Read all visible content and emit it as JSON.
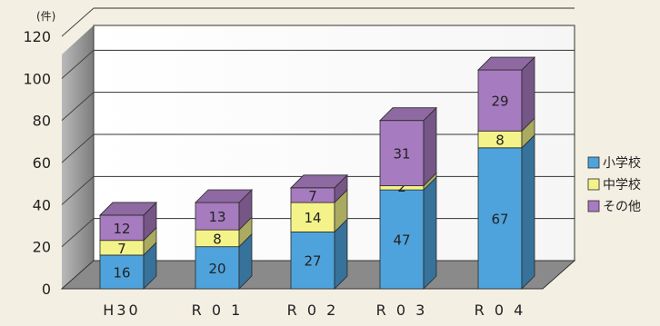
{
  "chart_data": {
    "type": "bar",
    "stacked": true,
    "three_d": true,
    "title": "",
    "xlabel": "",
    "ylabel": "",
    "unit": "(件)",
    "categories": [
      "H30",
      "R 0 1",
      "R 0 2",
      "R 0 3",
      "R 0 4"
    ],
    "series": [
      {
        "name": "小学校",
        "values": [
          16,
          20,
          27,
          47,
          67
        ],
        "color": "#4fa3dc"
      },
      {
        "name": "中学校",
        "values": [
          7,
          8,
          14,
          2,
          8
        ],
        "color": "#f3f38a"
      },
      {
        "name": "その他",
        "values": [
          12,
          13,
          7,
          31,
          29
        ],
        "color": "#a77bbf"
      }
    ],
    "ylim": [
      0,
      120
    ],
    "yticks": [
      0,
      20,
      40,
      60,
      80,
      100,
      120
    ],
    "grid": true,
    "legend_position": "right"
  }
}
